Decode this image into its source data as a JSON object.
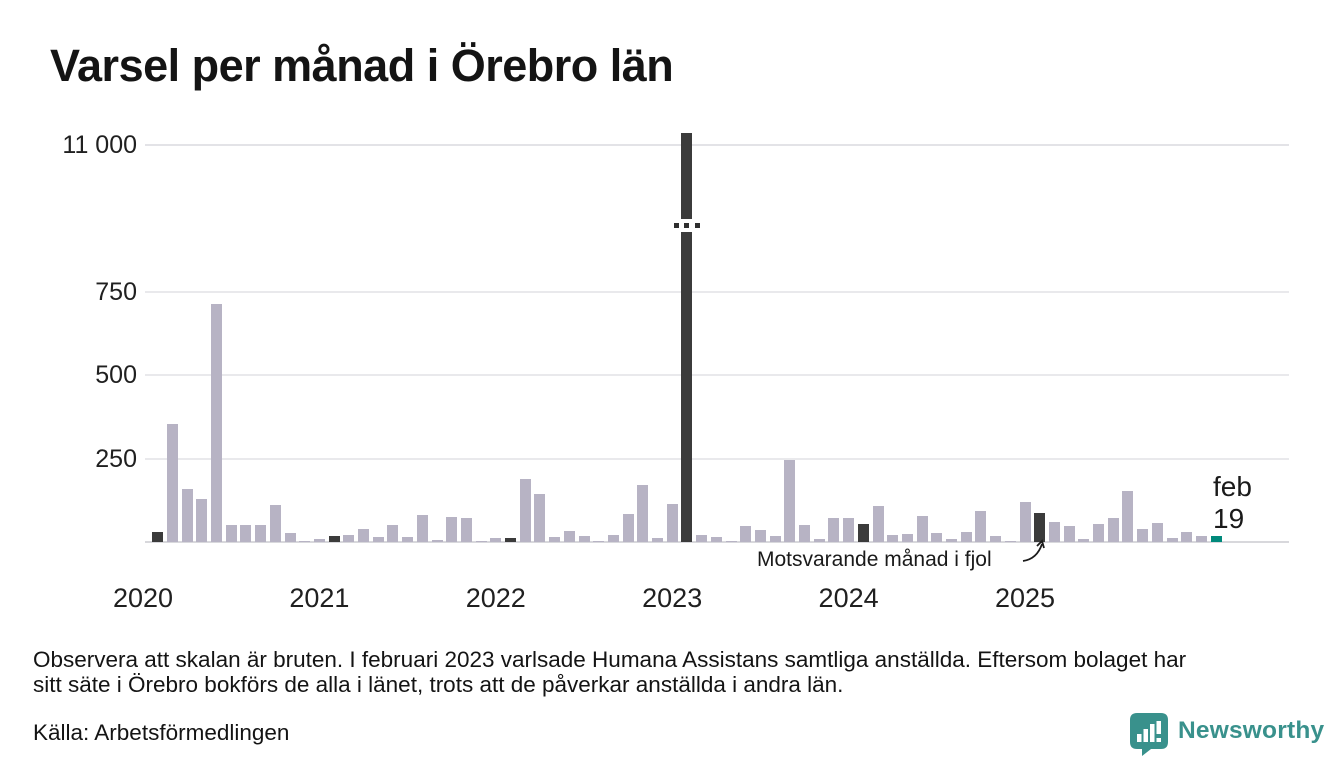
{
  "page_title": "Varsel per månad i Örebro län",
  "chart_data": {
    "type": "bar",
    "title": "Varsel per månad i Örebro län",
    "broken_scale": true,
    "y_axis": {
      "ticks": [
        {
          "label": "11 000",
          "value": 11000
        },
        {
          "label": "750",
          "value": 750
        },
        {
          "label": "500",
          "value": 500
        },
        {
          "label": "250",
          "value": 250
        }
      ]
    },
    "x_axis": {
      "ticks": [
        "2020",
        "2021",
        "2022",
        "2023",
        "2024",
        "2025"
      ]
    },
    "legend": "dark bars mark February of each year; teal bar is the latest month",
    "series": [
      {
        "month": "2020-02",
        "value": 30,
        "kind": "feb"
      },
      {
        "month": "2020-03",
        "value": 355,
        "kind": "normal"
      },
      {
        "month": "2020-04",
        "value": 160,
        "kind": "normal"
      },
      {
        "month": "2020-05",
        "value": 128,
        "kind": "normal"
      },
      {
        "month": "2020-06",
        "value": 715,
        "kind": "normal"
      },
      {
        "month": "2020-07",
        "value": 50,
        "kind": "normal"
      },
      {
        "month": "2020-08",
        "value": 50,
        "kind": "normal"
      },
      {
        "month": "2020-09",
        "value": 50,
        "kind": "normal"
      },
      {
        "month": "2020-10",
        "value": 110,
        "kind": "normal"
      },
      {
        "month": "2020-11",
        "value": 26,
        "kind": "normal"
      },
      {
        "month": "2020-12",
        "value": 2,
        "kind": "normal"
      },
      {
        "month": "2021-01",
        "value": 9,
        "kind": "normal"
      },
      {
        "month": "2021-02",
        "value": 18,
        "kind": "feb"
      },
      {
        "month": "2021-03",
        "value": 22,
        "kind": "normal"
      },
      {
        "month": "2021-04",
        "value": 38,
        "kind": "normal"
      },
      {
        "month": "2021-05",
        "value": 15,
        "kind": "normal"
      },
      {
        "month": "2021-06",
        "value": 50,
        "kind": "normal"
      },
      {
        "month": "2021-07",
        "value": 15,
        "kind": "normal"
      },
      {
        "month": "2021-08",
        "value": 80,
        "kind": "normal"
      },
      {
        "month": "2021-09",
        "value": 5,
        "kind": "normal"
      },
      {
        "month": "2021-10",
        "value": 75,
        "kind": "normal"
      },
      {
        "month": "2021-11",
        "value": 72,
        "kind": "normal"
      },
      {
        "month": "2021-12",
        "value": 3,
        "kind": "normal"
      },
      {
        "month": "2022-01",
        "value": 12,
        "kind": "normal"
      },
      {
        "month": "2022-02",
        "value": 13,
        "kind": "feb"
      },
      {
        "month": "2022-03",
        "value": 188,
        "kind": "normal"
      },
      {
        "month": "2022-04",
        "value": 143,
        "kind": "normal"
      },
      {
        "month": "2022-05",
        "value": 14,
        "kind": "normal"
      },
      {
        "month": "2022-06",
        "value": 33,
        "kind": "normal"
      },
      {
        "month": "2022-07",
        "value": 19,
        "kind": "normal"
      },
      {
        "month": "2022-08",
        "value": 2,
        "kind": "normal"
      },
      {
        "month": "2022-09",
        "value": 20,
        "kind": "normal"
      },
      {
        "month": "2022-10",
        "value": 85,
        "kind": "normal"
      },
      {
        "month": "2022-11",
        "value": 172,
        "kind": "normal"
      },
      {
        "month": "2022-12",
        "value": 12,
        "kind": "normal"
      },
      {
        "month": "2023-01",
        "value": 115,
        "kind": "normal"
      },
      {
        "month": "2023-02",
        "value": 11200,
        "kind": "feb"
      },
      {
        "month": "2023-03",
        "value": 20,
        "kind": "normal"
      },
      {
        "month": "2023-04",
        "value": 15,
        "kind": "normal"
      },
      {
        "month": "2023-05",
        "value": 4,
        "kind": "normal"
      },
      {
        "month": "2023-06",
        "value": 48,
        "kind": "normal"
      },
      {
        "month": "2023-07",
        "value": 35,
        "kind": "normal"
      },
      {
        "month": "2023-08",
        "value": 19,
        "kind": "normal"
      },
      {
        "month": "2023-09",
        "value": 245,
        "kind": "normal"
      },
      {
        "month": "2023-10",
        "value": 52,
        "kind": "normal"
      },
      {
        "month": "2023-11",
        "value": 8,
        "kind": "normal"
      },
      {
        "month": "2023-12",
        "value": 72,
        "kind": "normal"
      },
      {
        "month": "2024-01",
        "value": 72,
        "kind": "normal"
      },
      {
        "month": "2024-02",
        "value": 55,
        "kind": "feb"
      },
      {
        "month": "2024-03",
        "value": 108,
        "kind": "normal"
      },
      {
        "month": "2024-04",
        "value": 20,
        "kind": "normal"
      },
      {
        "month": "2024-05",
        "value": 25,
        "kind": "normal"
      },
      {
        "month": "2024-06",
        "value": 77,
        "kind": "normal"
      },
      {
        "month": "2024-07",
        "value": 28,
        "kind": "normal"
      },
      {
        "month": "2024-08",
        "value": 10,
        "kind": "normal"
      },
      {
        "month": "2024-09",
        "value": 29,
        "kind": "normal"
      },
      {
        "month": "2024-10",
        "value": 94,
        "kind": "normal"
      },
      {
        "month": "2024-11",
        "value": 17,
        "kind": "normal"
      },
      {
        "month": "2024-12",
        "value": 3,
        "kind": "normal"
      },
      {
        "month": "2025-01",
        "value": 120,
        "kind": "normal"
      },
      {
        "month": "2025-02",
        "value": 88,
        "kind": "feb"
      },
      {
        "month": "2025-03",
        "value": 60,
        "kind": "normal"
      },
      {
        "month": "2025-04",
        "value": 47,
        "kind": "normal"
      },
      {
        "month": "2025-05",
        "value": 10,
        "kind": "normal"
      },
      {
        "month": "2025-06",
        "value": 53,
        "kind": "normal"
      },
      {
        "month": "2025-07",
        "value": 73,
        "kind": "normal"
      },
      {
        "month": "2025-08",
        "value": 152,
        "kind": "normal"
      },
      {
        "month": "2025-09",
        "value": 38,
        "kind": "normal"
      },
      {
        "month": "2025-10",
        "value": 57,
        "kind": "normal"
      },
      {
        "month": "2025-11",
        "value": 13,
        "kind": "normal"
      },
      {
        "month": "2025-12",
        "value": 30,
        "kind": "normal"
      },
      {
        "month": "2026-01",
        "value": 18,
        "kind": "normal"
      },
      {
        "month": "2026-02",
        "value": 19,
        "kind": "current"
      }
    ],
    "colors": {
      "normal_bar": "#b7b3c4",
      "feb_bar": "#3b3b3b",
      "current_bar": "#00897b"
    },
    "current_point_label": {
      "line1": "feb",
      "line2": "19"
    },
    "annotation": {
      "text": "Motsvarande månad i fjol",
      "points_to": "2025-02"
    }
  },
  "footer": {
    "note_lines": [
      "Observera att skalan är bruten. I februari 2023 varlsade Humana Assistans samtliga anställda. Eftersom bolaget har",
      "sitt säte i Örebro bokförs de alla i länet, trots att de påverkar anställda i andra län."
    ],
    "source": "Källa: Arbetsförmedlingen"
  },
  "logo": {
    "text": "Newsworthy",
    "color": "#39918c"
  }
}
